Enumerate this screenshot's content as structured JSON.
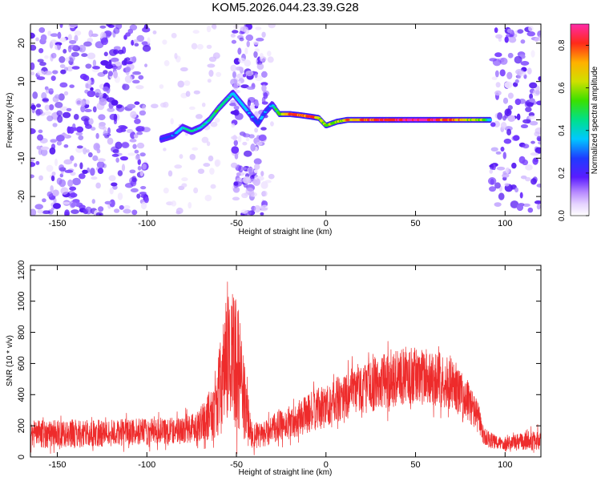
{
  "title": "KOM5.2026.044.23.39.G28",
  "colors": {
    "snr_line": "#ee2b2b",
    "noise_purple": "#9b59ff",
    "trace_blue": "#3a1cff",
    "frame": "#000000",
    "background": "#ffffff"
  },
  "chart_data": [
    {
      "type": "heatmap",
      "title": "KOM5.2026.044.23.39.G28",
      "xlabel": "Height of straight line (km)",
      "ylabel": "Frequency (Hz)",
      "xlim": [
        -165,
        120
      ],
      "ylim": [
        -25,
        25
      ],
      "xticks": [
        -150,
        -100,
        -50,
        0,
        50,
        100
      ],
      "yticks": [
        -20,
        -10,
        0,
        10,
        20
      ],
      "colorbar": {
        "label": "Normalized spectral amplitude",
        "range": [
          0.0,
          0.9
        ],
        "ticks": [
          0.0,
          0.2,
          0.4,
          0.6,
          0.8
        ],
        "colormap": "rainbow"
      },
      "noise_regions_km": [
        [
          -165,
          -100
        ],
        [
          -52,
          -33
        ],
        [
          92,
          120
        ]
      ],
      "trace": {
        "x": [
          -92,
          -85,
          -80,
          -75,
          -70,
          -65,
          -60,
          -56,
          -52,
          -38,
          -34,
          -30,
          -26,
          -20,
          -14,
          -8,
          -4,
          0,
          6,
          12,
          30,
          50,
          70,
          88,
          92
        ],
        "freq_hz": [
          -5,
          -4,
          -2,
          -3,
          -2,
          0,
          3,
          5,
          7,
          -1,
          2,
          4,
          1.5,
          1.5,
          1.2,
          0.8,
          0.5,
          -1.5,
          -0.5,
          0,
          0,
          0,
          0,
          0,
          0
        ],
        "amplitude": [
          0.22,
          0.3,
          0.35,
          0.4,
          0.35,
          0.38,
          0.45,
          0.4,
          0.35,
          0.25,
          0.3,
          0.3,
          0.55,
          0.7,
          0.75,
          0.8,
          0.6,
          0.5,
          0.55,
          0.65,
          0.8,
          0.9,
          0.75,
          0.5,
          0.3
        ]
      }
    },
    {
      "type": "line",
      "xlabel": "Height of straight line (km)",
      "ylabel": "SNR (10 * v/v)",
      "xlim": [
        -165,
        120
      ],
      "ylim": [
        0,
        1230
      ],
      "xticks": [
        -150,
        -100,
        -50,
        0,
        50,
        100
      ],
      "yticks": [
        0,
        200,
        400,
        600,
        800,
        1000,
        1200
      ],
      "envelope": {
        "x": [
          -165,
          -140,
          -125,
          -110,
          -95,
          -80,
          -70,
          -63,
          -58,
          -54,
          -50,
          -46,
          -42,
          -38,
          -34,
          -30,
          -20,
          -10,
          0,
          10,
          20,
          30,
          40,
          50,
          60,
          70,
          80,
          85,
          88,
          95,
          105,
          120
        ],
        "mean": [
          150,
          150,
          150,
          160,
          165,
          175,
          210,
          300,
          480,
          680,
          600,
          380,
          170,
          130,
          145,
          180,
          220,
          280,
          330,
          390,
          440,
          480,
          510,
          520,
          510,
          470,
          350,
          250,
          130,
          90,
          95,
          110
        ],
        "amplitude": [
          90,
          90,
          85,
          85,
          85,
          90,
          110,
          180,
          330,
          480,
          430,
          260,
          110,
          80,
          85,
          95,
          105,
          125,
          140,
          150,
          165,
          175,
          180,
          185,
          180,
          165,
          130,
          100,
          60,
          45,
          50,
          70
        ]
      }
    }
  ]
}
